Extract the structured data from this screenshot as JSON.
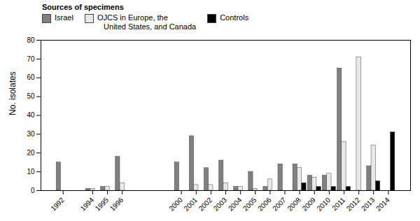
{
  "chart_data": {
    "type": "bar",
    "x": [
      1992,
      1994,
      1995,
      1996,
      2000,
      2001,
      2002,
      2003,
      2004,
      2005,
      2006,
      2007,
      2008,
      2009,
      2010,
      2011,
      2012,
      2013,
      2014
    ],
    "series": [
      {
        "name": "Israel",
        "color": "#808080",
        "values": [
          15,
          1,
          2,
          18,
          15,
          29,
          12,
          16,
          2,
          10,
          2,
          14,
          14,
          8,
          8,
          65,
          0,
          13,
          0
        ]
      },
      {
        "name": "OJCS in Europe, the\n   United States, and Canada",
        "color": "#e8e8e8",
        "values": [
          0,
          1,
          2,
          4,
          0,
          3,
          3,
          4,
          2,
          1,
          6,
          0,
          12,
          7,
          9,
          26,
          71,
          24,
          0
        ]
      },
      {
        "name": "Controls",
        "color": "#000000",
        "values": [
          0,
          0,
          0,
          0,
          0,
          0,
          0,
          0,
          0,
          0,
          0,
          0,
          4,
          2,
          2,
          2,
          0,
          5,
          31
        ]
      }
    ],
    "legend_title": "Sources of specimens",
    "legend": "top",
    "ylabel": "No. isolates",
    "ylim": [
      0,
      80
    ],
    "yticks": [
      0,
      10,
      20,
      30,
      40,
      50,
      60,
      70,
      80
    ],
    "xlim": [
      1990.5,
      2015.5
    ],
    "xticks": [
      1992,
      1994,
      1995,
      1996,
      2000,
      2001,
      2002,
      2003,
      2004,
      2005,
      2006,
      2007,
      2008,
      2009,
      2010,
      2011,
      2012,
      2013,
      2014
    ]
  }
}
